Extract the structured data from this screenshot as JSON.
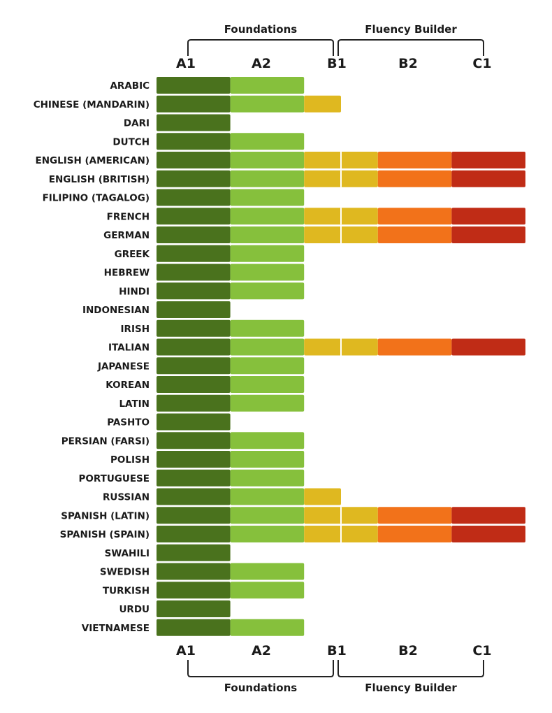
{
  "chart_data": {
    "type": "bar",
    "levels": [
      "A1",
      "A2",
      "B1",
      "B2",
      "C1"
    ],
    "groups": [
      {
        "label": "Foundations",
        "from": "A1",
        "to": "B1"
      },
      {
        "label": "Fluency Builder",
        "from": "B1",
        "to": "C1"
      }
    ],
    "colors": {
      "A1": "#4a721d",
      "A2": "#86c03c",
      "B1": "#dfb820",
      "B2": "#f2721a",
      "C1": "#c02c16"
    },
    "divider_color": "#ffffff",
    "categories": [
      "ARABIC",
      "CHINESE (MANDARIN)",
      "DARI",
      "DUTCH",
      "ENGLISH (AMERICAN)",
      "ENGLISH (BRITISH)",
      "FILIPINO (TAGALOG)",
      "FRENCH",
      "GERMAN",
      "GREEK",
      "HEBREW",
      "HINDI",
      "INDONESIAN",
      "IRISH",
      "ITALIAN",
      "JAPANESE",
      "KOREAN",
      "LATIN",
      "PASHTO",
      "PERSIAN (FARSI)",
      "POLISH",
      "PORTUGUESE",
      "RUSSIAN",
      "SPANISH (LATIN)",
      "SPANISH (SPAIN)",
      "SWAHILI",
      "SWEDISH",
      "TURKISH",
      "URDU",
      "VIETNAMESE"
    ],
    "values": [
      2,
      2.5,
      1,
      2,
      5,
      5,
      2,
      5,
      5,
      2,
      2,
      2,
      1,
      2,
      5,
      2,
      2,
      2,
      1,
      2,
      2,
      2,
      2.5,
      5,
      5,
      1,
      2,
      2,
      1,
      2
    ],
    "xlim": [
      0,
      5
    ],
    "top_axis_labels": [
      "A1",
      "A2",
      "B1",
      "B2",
      "C1"
    ],
    "bottom_axis_labels": [
      "A1",
      "A2",
      "B1",
      "B2",
      "C1"
    ]
  }
}
